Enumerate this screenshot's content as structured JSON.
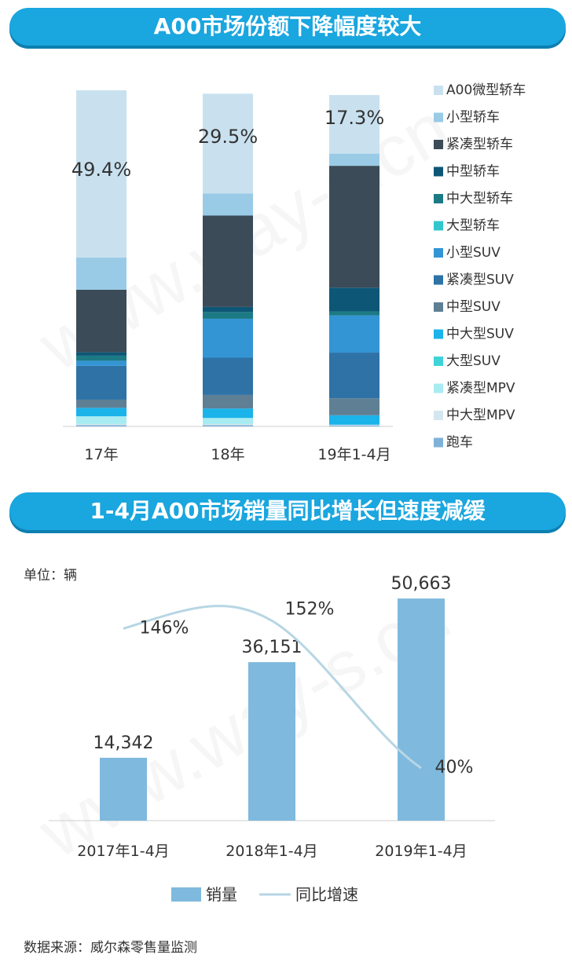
{
  "banners": {
    "top": "A00市场份额下降幅度较大",
    "bottom": "1-4月A00市场销量同比增长但速度减缓"
  },
  "watermark": "www.way-s.cn",
  "source": "数据来源：威尔森零售量监测",
  "chart_data": [
    {
      "type": "bar",
      "stacked": true,
      "categories": [
        "17年",
        "18年",
        "19年1-4月"
      ],
      "ylim": [
        0,
        100
      ],
      "legend_position": "right",
      "series": [
        {
          "name": "跑车",
          "values": [
            0.4,
            0.4,
            0.3
          ],
          "color": "#7fb2d8"
        },
        {
          "name": "中大型MPV",
          "values": [
            0.3,
            0.3,
            0.2
          ],
          "color": "#d4e6ef"
        },
        {
          "name": "紧凑型MPV",
          "values": [
            2.3,
            1.8,
            0.0
          ],
          "color": "#a8ebf0"
        },
        {
          "name": "大型SUV",
          "values": [
            0.0,
            0.0,
            0.0
          ],
          "color": "#3fd3d8"
        },
        {
          "name": "中大型SUV",
          "values": [
            2.5,
            2.8,
            2.8
          ],
          "color": "#1ab3ea"
        },
        {
          "name": "中型SUV",
          "values": [
            2.4,
            4.0,
            5.0
          ],
          "color": "#5f7f94"
        },
        {
          "name": "紧凑型SUV",
          "values": [
            10.0,
            11.0,
            13.5
          ],
          "color": "#2e72a6"
        },
        {
          "name": "小型SUV",
          "values": [
            1.5,
            11.5,
            11.0
          ],
          "color": "#3395d4"
        },
        {
          "name": "大型轿车",
          "values": [
            0.0,
            0.0,
            0.0
          ],
          "color": "#33c6cc"
        },
        {
          "name": "中大型轿车",
          "values": [
            1.5,
            2.0,
            1.2
          ],
          "color": "#1c7a85"
        },
        {
          "name": "中型轿车",
          "values": [
            1.0,
            1.5,
            7.0
          ],
          "color": "#0d5676"
        },
        {
          "name": "紧凑型轿车",
          "values": [
            18.5,
            27.0,
            36.0
          ],
          "color": "#3b4b58"
        },
        {
          "name": "小型轿车",
          "values": [
            9.5,
            6.5,
            3.6
          ],
          "color": "#9acbe6"
        },
        {
          "name": "A00微型轿车",
          "values": [
            49.4,
            29.5,
            17.3
          ],
          "color": "#c9e1ef"
        }
      ],
      "data_labels": [
        "49.4%",
        "29.5%",
        "17.3%"
      ]
    },
    {
      "type": "bar",
      "categories": [
        "2017年1-4月",
        "2018年1-4月",
        "2019年1-4月"
      ],
      "unit_label": "单位：辆",
      "ylim": [
        0,
        60000
      ],
      "legend_position": "bottom",
      "series": [
        {
          "name": "销量",
          "kind": "bar",
          "values": [
            14342,
            36151,
            50663
          ],
          "labels": [
            "14,342",
            "36,151",
            "50,663"
          ],
          "color": "#7fb9dd"
        },
        {
          "name": "同比增速",
          "kind": "line",
          "values": [
            146,
            152,
            40
          ],
          "labels": [
            "146%",
            "152%",
            "40%"
          ],
          "color": "#b7d6e4",
          "ylim": [
            0,
            200
          ]
        }
      ]
    }
  ]
}
